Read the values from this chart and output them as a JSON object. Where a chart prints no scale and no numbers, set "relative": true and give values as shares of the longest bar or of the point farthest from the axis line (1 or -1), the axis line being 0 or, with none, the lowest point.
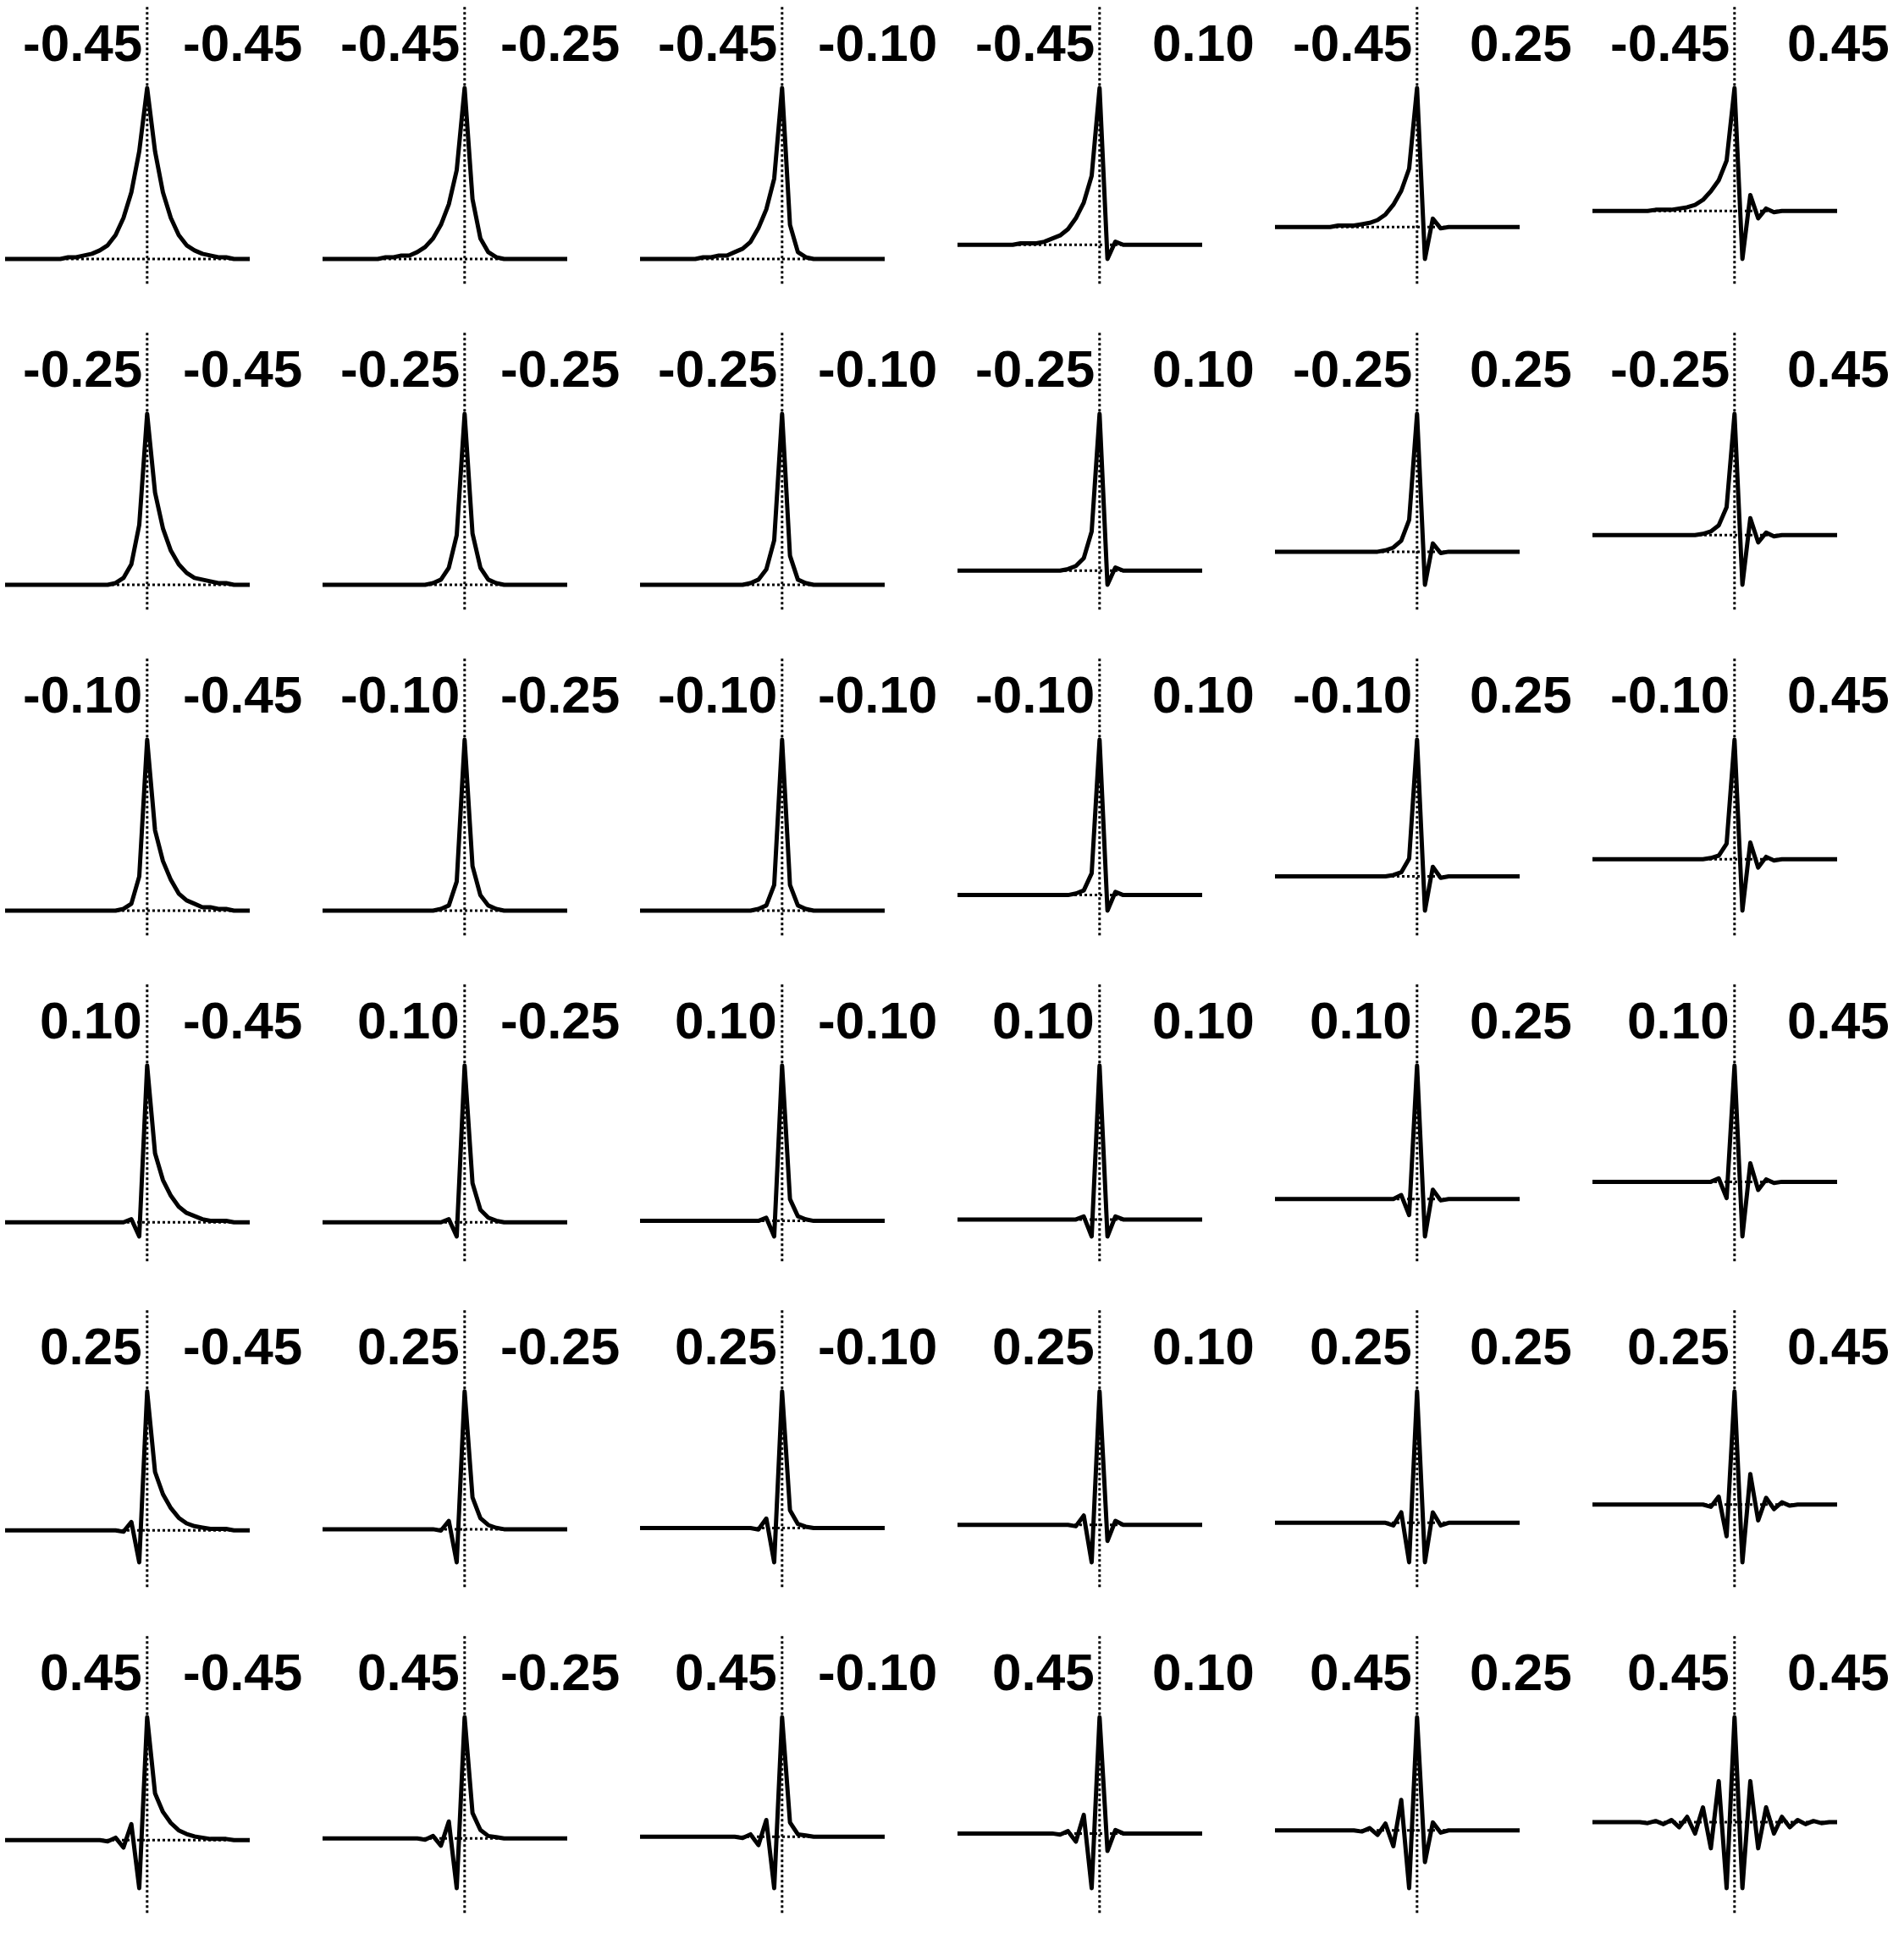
{
  "chart_data": [
    {
      "type": "line",
      "relative": true,
      "color": "#000000",
      "annotations": [
        "-0.45",
        "-0.45"
      ],
      "categories": [
        null,
        null,
        null,
        null,
        null,
        null,
        null,
        null,
        null,
        null,
        null,
        null,
        null,
        null,
        null,
        null,
        null,
        null,
        null,
        null,
        null,
        null,
        null,
        null,
        null,
        null,
        null,
        null,
        null,
        null,
        null,
        null
      ],
      "values": [
        0,
        0,
        0,
        0,
        0,
        0,
        0,
        0,
        0.01,
        0.01,
        0.02,
        0.03,
        0.05,
        0.08,
        0.14,
        0.24,
        0.39,
        0.63,
        1,
        0.63,
        0.39,
        0.24,
        0.14,
        0.08,
        0.05,
        0.03,
        0.02,
        0.01,
        0.01,
        0,
        0,
        0
      ]
    },
    {
      "type": "line",
      "relative": true,
      "color": "#000000",
      "annotations": [
        "-0.45",
        "-0.25"
      ],
      "categories": [
        null,
        null,
        null,
        null,
        null,
        null,
        null,
        null,
        null,
        null,
        null,
        null,
        null,
        null,
        null,
        null,
        null,
        null,
        null,
        null,
        null,
        null,
        null,
        null,
        null,
        null,
        null,
        null,
        null,
        null,
        null,
        null
      ],
      "values": [
        0,
        0,
        0,
        0,
        0,
        0,
        0,
        0,
        0.01,
        0.01,
        0.02,
        0.02,
        0.04,
        0.07,
        0.12,
        0.2,
        0.32,
        0.52,
        1,
        0.35,
        0.12,
        0.04,
        0.01,
        0,
        0,
        0,
        0,
        0,
        0,
        0,
        0,
        0
      ]
    },
    {
      "type": "line",
      "relative": true,
      "color": "#000000",
      "annotations": [
        "-0.45",
        "-0.10"
      ],
      "categories": [
        null,
        null,
        null,
        null,
        null,
        null,
        null,
        null,
        null,
        null,
        null,
        null,
        null,
        null,
        null,
        null,
        null,
        null,
        null,
        null,
        null,
        null,
        null,
        null,
        null,
        null,
        null,
        null,
        null,
        null,
        null,
        null
      ],
      "values": [
        0,
        0,
        0,
        0,
        0,
        0,
        0,
        0,
        0.01,
        0.01,
        0.02,
        0.02,
        0.04,
        0.06,
        0.1,
        0.18,
        0.29,
        0.47,
        1,
        0.2,
        0.04,
        0.01,
        0,
        0,
        0,
        0,
        0,
        0,
        0,
        0,
        0,
        0
      ]
    },
    {
      "type": "line",
      "relative": true,
      "color": "#000000",
      "annotations": [
        "-0.45",
        "0.10"
      ],
      "categories": [
        null,
        null,
        null,
        null,
        null,
        null,
        null,
        null,
        null,
        null,
        null,
        null,
        null,
        null,
        null,
        null,
        null,
        null,
        null,
        null,
        null,
        null,
        null,
        null,
        null,
        null,
        null,
        null,
        null,
        null,
        null,
        null
      ],
      "values": [
        0,
        0,
        0,
        0,
        0,
        0,
        0,
        0,
        0.01,
        0.01,
        0.01,
        0.02,
        0.04,
        0.06,
        0.1,
        0.17,
        0.27,
        0.44,
        1,
        -0.09,
        0.02,
        0,
        0,
        0,
        0,
        0,
        0,
        0,
        0,
        0,
        0,
        0
      ]
    },
    {
      "type": "line",
      "relative": true,
      "color": "#000000",
      "annotations": [
        "-0.45",
        "0.25"
      ],
      "categories": [
        null,
        null,
        null,
        null,
        null,
        null,
        null,
        null,
        null,
        null,
        null,
        null,
        null,
        null,
        null,
        null,
        null,
        null,
        null,
        null,
        null,
        null,
        null,
        null,
        null,
        null,
        null,
        null,
        null,
        null,
        null,
        null
      ],
      "values": [
        0,
        0,
        0,
        0,
        0,
        0,
        0,
        0,
        0.01,
        0.01,
        0.01,
        0.02,
        0.03,
        0.05,
        0.09,
        0.16,
        0.26,
        0.42,
        1,
        -0.23,
        0.06,
        -0.01,
        0,
        0,
        0,
        0,
        0,
        0,
        0,
        0,
        0,
        0
      ]
    },
    {
      "type": "line",
      "relative": true,
      "color": "#000000",
      "annotations": [
        "-0.45",
        "0.45"
      ],
      "categories": [
        null,
        null,
        null,
        null,
        null,
        null,
        null,
        null,
        null,
        null,
        null,
        null,
        null,
        null,
        null,
        null,
        null,
        null,
        null,
        null,
        null,
        null,
        null,
        null,
        null,
        null,
        null,
        null,
        null,
        null,
        null,
        null
      ],
      "values": [
        0,
        0,
        0,
        0,
        0,
        0,
        0,
        0,
        0.01,
        0.01,
        0.01,
        0.02,
        0.03,
        0.05,
        0.09,
        0.16,
        0.25,
        0.41,
        1,
        -0.39,
        0.13,
        -0.06,
        0.02,
        -0.01,
        0,
        0,
        0,
        0,
        0,
        0,
        0,
        0
      ]
    },
    {
      "type": "line",
      "relative": true,
      "color": "#000000",
      "annotations": [
        "-0.25",
        "-0.45"
      ],
      "categories": [
        null,
        null,
        null,
        null,
        null,
        null,
        null,
        null,
        null,
        null,
        null,
        null,
        null,
        null,
        null,
        null,
        null,
        null,
        null,
        null,
        null,
        null,
        null,
        null,
        null,
        null,
        null,
        null,
        null,
        null,
        null,
        null
      ],
      "values": [
        0,
        0,
        0,
        0,
        0,
        0,
        0,
        0,
        0,
        0,
        0,
        0,
        0,
        0,
        0.01,
        0.04,
        0.12,
        0.35,
        1,
        0.54,
        0.33,
        0.2,
        0.12,
        0.07,
        0.04,
        0.03,
        0.02,
        0.01,
        0.01,
        0,
        0,
        0
      ]
    },
    {
      "type": "line",
      "relative": true,
      "color": "#000000",
      "annotations": [
        "-0.25",
        "-0.25"
      ],
      "categories": [
        null,
        null,
        null,
        null,
        null,
        null,
        null,
        null,
        null,
        null,
        null,
        null,
        null,
        null,
        null,
        null,
        null,
        null,
        null,
        null,
        null,
        null,
        null,
        null,
        null,
        null,
        null,
        null,
        null,
        null,
        null,
        null
      ],
      "values": [
        0,
        0,
        0,
        0,
        0,
        0,
        0,
        0,
        0,
        0,
        0,
        0,
        0,
        0,
        0.01,
        0.03,
        0.1,
        0.29,
        1,
        0.3,
        0.1,
        0.03,
        0.01,
        0,
        0,
        0,
        0,
        0,
        0,
        0,
        0,
        0
      ]
    },
    {
      "type": "line",
      "relative": true,
      "color": "#000000",
      "annotations": [
        "-0.25",
        "-0.10"
      ],
      "categories": [
        null,
        null,
        null,
        null,
        null,
        null,
        null,
        null,
        null,
        null,
        null,
        null,
        null,
        null,
        null,
        null,
        null,
        null,
        null,
        null,
        null,
        null,
        null,
        null,
        null,
        null,
        null,
        null,
        null,
        null,
        null,
        null
      ],
      "values": [
        0,
        0,
        0,
        0,
        0,
        0,
        0,
        0,
        0,
        0,
        0,
        0,
        0,
        0,
        0.01,
        0.03,
        0.09,
        0.26,
        1,
        0.17,
        0.03,
        0.01,
        0,
        0,
        0,
        0,
        0,
        0,
        0,
        0,
        0,
        0
      ]
    },
    {
      "type": "line",
      "relative": true,
      "color": "#000000",
      "annotations": [
        "-0.25",
        "0.10"
      ],
      "categories": [
        null,
        null,
        null,
        null,
        null,
        null,
        null,
        null,
        null,
        null,
        null,
        null,
        null,
        null,
        null,
        null,
        null,
        null,
        null,
        null,
        null,
        null,
        null,
        null,
        null,
        null,
        null,
        null,
        null,
        null,
        null,
        null
      ],
      "values": [
        0,
        0,
        0,
        0,
        0,
        0,
        0,
        0,
        0,
        0,
        0,
        0,
        0,
        0,
        0.01,
        0.03,
        0.08,
        0.25,
        1,
        -0.09,
        0.02,
        0,
        0,
        0,
        0,
        0,
        0,
        0,
        0,
        0,
        0,
        0
      ]
    },
    {
      "type": "line",
      "relative": true,
      "color": "#000000",
      "annotations": [
        "-0.25",
        "0.25"
      ],
      "categories": [
        null,
        null,
        null,
        null,
        null,
        null,
        null,
        null,
        null,
        null,
        null,
        null,
        null,
        null,
        null,
        null,
        null,
        null,
        null,
        null,
        null,
        null,
        null,
        null,
        null,
        null,
        null,
        null,
        null,
        null,
        null,
        null
      ],
      "values": [
        0,
        0,
        0,
        0,
        0,
        0,
        0,
        0,
        0,
        0,
        0,
        0,
        0,
        0,
        0.01,
        0.03,
        0.08,
        0.23,
        1,
        -0.24,
        0.06,
        -0.01,
        0,
        0,
        0,
        0,
        0,
        0,
        0,
        0,
        0,
        0
      ]
    },
    {
      "type": "line",
      "relative": true,
      "color": "#000000",
      "annotations": [
        "-0.25",
        "0.45"
      ],
      "categories": [
        null,
        null,
        null,
        null,
        null,
        null,
        null,
        null,
        null,
        null,
        null,
        null,
        null,
        null,
        null,
        null,
        null,
        null,
        null,
        null,
        null,
        null,
        null,
        null,
        null,
        null,
        null,
        null,
        null,
        null,
        null,
        null
      ],
      "values": [
        0,
        0,
        0,
        0,
        0,
        0,
        0,
        0,
        0,
        0,
        0,
        0,
        0,
        0,
        0.01,
        0.03,
        0.08,
        0.23,
        1,
        -0.41,
        0.14,
        -0.06,
        0.02,
        -0.01,
        0,
        0,
        0,
        0,
        0,
        0,
        0,
        0
      ]
    },
    {
      "type": "line",
      "relative": true,
      "color": "#000000",
      "annotations": [
        "-0.10",
        "-0.45"
      ],
      "categories": [
        null,
        null,
        null,
        null,
        null,
        null,
        null,
        null,
        null,
        null,
        null,
        null,
        null,
        null,
        null,
        null,
        null,
        null,
        null,
        null,
        null,
        null,
        null,
        null,
        null,
        null,
        null,
        null,
        null,
        null,
        null,
        null
      ],
      "values": [
        0,
        0,
        0,
        0,
        0,
        0,
        0,
        0,
        0,
        0,
        0,
        0,
        0,
        0,
        0,
        0.01,
        0.04,
        0.2,
        1,
        0.47,
        0.29,
        0.18,
        0.1,
        0.06,
        0.04,
        0.02,
        0.02,
        0.01,
        0.01,
        0,
        0,
        0
      ]
    },
    {
      "type": "line",
      "relative": true,
      "color": "#000000",
      "annotations": [
        "-0.10",
        "-0.25"
      ],
      "categories": [
        null,
        null,
        null,
        null,
        null,
        null,
        null,
        null,
        null,
        null,
        null,
        null,
        null,
        null,
        null,
        null,
        null,
        null,
        null,
        null,
        null,
        null,
        null,
        null,
        null,
        null,
        null,
        null,
        null,
        null,
        null,
        null
      ],
      "values": [
        0,
        0,
        0,
        0,
        0,
        0,
        0,
        0,
        0,
        0,
        0,
        0,
        0,
        0,
        0,
        0.01,
        0.03,
        0.17,
        1,
        0.26,
        0.09,
        0.03,
        0.01,
        0,
        0,
        0,
        0,
        0,
        0,
        0,
        0,
        0
      ]
    },
    {
      "type": "line",
      "relative": true,
      "color": "#000000",
      "annotations": [
        "-0.10",
        "-0.10"
      ],
      "categories": [
        null,
        null,
        null,
        null,
        null,
        null,
        null,
        null,
        null,
        null,
        null,
        null,
        null,
        null,
        null,
        null,
        null,
        null,
        null,
        null,
        null,
        null,
        null,
        null,
        null,
        null,
        null,
        null,
        null,
        null,
        null,
        null
      ],
      "values": [
        0,
        0,
        0,
        0,
        0,
        0,
        0,
        0,
        0,
        0,
        0,
        0,
        0,
        0,
        0,
        0.01,
        0.03,
        0.15,
        1,
        0.15,
        0.03,
        0.01,
        0,
        0,
        0,
        0,
        0,
        0,
        0,
        0,
        0,
        0
      ]
    },
    {
      "type": "line",
      "relative": true,
      "color": "#000000",
      "annotations": [
        "-0.10",
        "0.10"
      ],
      "categories": [
        null,
        null,
        null,
        null,
        null,
        null,
        null,
        null,
        null,
        null,
        null,
        null,
        null,
        null,
        null,
        null,
        null,
        null,
        null,
        null,
        null,
        null,
        null,
        null,
        null,
        null,
        null,
        null,
        null,
        null,
        null,
        null
      ],
      "values": [
        0,
        0,
        0,
        0,
        0,
        0,
        0,
        0,
        0,
        0,
        0,
        0,
        0,
        0,
        0,
        0.01,
        0.03,
        0.14,
        1,
        -0.1,
        0.02,
        0,
        0,
        0,
        0,
        0,
        0,
        0,
        0,
        0,
        0,
        0
      ]
    },
    {
      "type": "line",
      "relative": true,
      "color": "#000000",
      "annotations": [
        "-0.10",
        "0.25"
      ],
      "categories": [
        null,
        null,
        null,
        null,
        null,
        null,
        null,
        null,
        null,
        null,
        null,
        null,
        null,
        null,
        null,
        null,
        null,
        null,
        null,
        null,
        null,
        null,
        null,
        null,
        null,
        null,
        null,
        null,
        null,
        null,
        null,
        null
      ],
      "values": [
        0,
        0,
        0,
        0,
        0,
        0,
        0,
        0,
        0,
        0,
        0,
        0,
        0,
        0,
        0,
        0.01,
        0.03,
        0.13,
        1,
        -0.25,
        0.07,
        -0.01,
        0,
        0,
        0,
        0,
        0,
        0,
        0,
        0,
        0,
        0
      ]
    },
    {
      "type": "line",
      "relative": true,
      "color": "#000000",
      "annotations": [
        "-0.10",
        "0.45"
      ],
      "categories": [
        null,
        null,
        null,
        null,
        null,
        null,
        null,
        null,
        null,
        null,
        null,
        null,
        null,
        null,
        null,
        null,
        null,
        null,
        null,
        null,
        null,
        null,
        null,
        null,
        null,
        null,
        null,
        null,
        null,
        null,
        null,
        null
      ],
      "values": [
        0,
        0,
        0,
        0,
        0,
        0,
        0,
        0,
        0,
        0,
        0,
        0,
        0,
        0,
        0,
        0.01,
        0.03,
        0.13,
        1,
        -0.43,
        0.14,
        -0.07,
        0.02,
        -0.01,
        0,
        0,
        0,
        0,
        0,
        0,
        0,
        0
      ]
    },
    {
      "type": "line",
      "relative": true,
      "color": "#000000",
      "annotations": [
        "0.10",
        "-0.45"
      ],
      "categories": [
        null,
        null,
        null,
        null,
        null,
        null,
        null,
        null,
        null,
        null,
        null,
        null,
        null,
        null,
        null,
        null,
        null,
        null,
        null,
        null,
        null,
        null,
        null,
        null,
        null,
        null,
        null,
        null,
        null,
        null,
        null,
        null
      ],
      "values": [
        0,
        0,
        0,
        0,
        0,
        0,
        0,
        0,
        0,
        0,
        0,
        0,
        0,
        0,
        0,
        0,
        0.02,
        -0.09,
        1,
        0.44,
        0.27,
        0.17,
        0.1,
        0.06,
        0.04,
        0.02,
        0.01,
        0.01,
        0.01,
        0,
        0,
        0
      ]
    },
    {
      "type": "line",
      "relative": true,
      "color": "#000000",
      "annotations": [
        "0.10",
        "-0.25"
      ],
      "categories": [
        null,
        null,
        null,
        null,
        null,
        null,
        null,
        null,
        null,
        null,
        null,
        null,
        null,
        null,
        null,
        null,
        null,
        null,
        null,
        null,
        null,
        null,
        null,
        null,
        null,
        null,
        null,
        null,
        null,
        null,
        null,
        null
      ],
      "values": [
        0,
        0,
        0,
        0,
        0,
        0,
        0,
        0,
        0,
        0,
        0,
        0,
        0,
        0,
        0,
        0,
        0.02,
        -0.09,
        1,
        0.25,
        0.08,
        0.03,
        0.01,
        0,
        0,
        0,
        0,
        0,
        0,
        0,
        0,
        0
      ]
    },
    {
      "type": "line",
      "relative": true,
      "color": "#000000",
      "annotations": [
        "0.10",
        "-0.10"
      ],
      "categories": [
        null,
        null,
        null,
        null,
        null,
        null,
        null,
        null,
        null,
        null,
        null,
        null,
        null,
        null,
        null,
        null,
        null,
        null,
        null,
        null,
        null,
        null,
        null,
        null,
        null,
        null,
        null,
        null,
        null,
        null,
        null,
        null
      ],
      "values": [
        0,
        0,
        0,
        0,
        0,
        0,
        0,
        0,
        0,
        0,
        0,
        0,
        0,
        0,
        0,
        0,
        0.02,
        -0.1,
        1,
        0.14,
        0.03,
        0.01,
        0,
        0,
        0,
        0,
        0,
        0,
        0,
        0,
        0,
        0
      ]
    },
    {
      "type": "line",
      "relative": true,
      "color": "#000000",
      "annotations": [
        "0.10",
        "0.10"
      ],
      "categories": [
        null,
        null,
        null,
        null,
        null,
        null,
        null,
        null,
        null,
        null,
        null,
        null,
        null,
        null,
        null,
        null,
        null,
        null,
        null,
        null,
        null,
        null,
        null,
        null,
        null,
        null,
        null,
        null,
        null,
        null,
        null,
        null
      ],
      "values": [
        0,
        0,
        0,
        0,
        0,
        0,
        0,
        0,
        0,
        0,
        0,
        0,
        0,
        0,
        0,
        0,
        0.02,
        -0.11,
        1,
        -0.11,
        0.02,
        0,
        0,
        0,
        0,
        0,
        0,
        0,
        0,
        0,
        0,
        0
      ]
    },
    {
      "type": "line",
      "relative": true,
      "color": "#000000",
      "annotations": [
        "0.10",
        "0.25"
      ],
      "categories": [
        null,
        null,
        null,
        null,
        null,
        null,
        null,
        null,
        null,
        null,
        null,
        null,
        null,
        null,
        null,
        null,
        null,
        null,
        null,
        null,
        null,
        null,
        null,
        null,
        null,
        null,
        null,
        null,
        null,
        null,
        null,
        null
      ],
      "values": [
        0,
        0,
        0,
        0,
        0,
        0,
        0,
        0,
        0,
        0,
        0,
        0,
        0,
        0,
        0,
        0,
        0.03,
        -0.12,
        1,
        -0.28,
        0.07,
        -0.01,
        0,
        0,
        0,
        0,
        0,
        0,
        0,
        0,
        0,
        0
      ]
    },
    {
      "type": "line",
      "relative": true,
      "color": "#000000",
      "annotations": [
        "0.10",
        "0.45"
      ],
      "categories": [
        null,
        null,
        null,
        null,
        null,
        null,
        null,
        null,
        null,
        null,
        null,
        null,
        null,
        null,
        null,
        null,
        null,
        null,
        null,
        null,
        null,
        null,
        null,
        null,
        null,
        null,
        null,
        null,
        null,
        null,
        null,
        null
      ],
      "values": [
        0,
        0,
        0,
        0,
        0,
        0,
        0,
        0,
        0,
        0,
        0,
        0,
        0,
        0,
        0,
        0,
        0.03,
        -0.14,
        1,
        -0.47,
        0.16,
        -0.07,
        0.02,
        -0.01,
        0,
        0,
        0,
        0,
        0,
        0,
        0,
        0
      ]
    },
    {
      "type": "line",
      "relative": true,
      "color": "#000000",
      "annotations": [
        "0.25",
        "-0.45"
      ],
      "categories": [
        null,
        null,
        null,
        null,
        null,
        null,
        null,
        null,
        null,
        null,
        null,
        null,
        null,
        null,
        null,
        null,
        null,
        null,
        null,
        null,
        null,
        null,
        null,
        null,
        null,
        null,
        null,
        null,
        null,
        null,
        null,
        null
      ],
      "values": [
        0,
        0,
        0,
        0,
        0,
        0,
        0,
        0,
        0,
        0,
        0,
        0,
        0,
        0,
        0,
        -0.01,
        0.06,
        -0.23,
        1,
        0.42,
        0.26,
        0.16,
        0.09,
        0.05,
        0.03,
        0.02,
        0.01,
        0.01,
        0.01,
        0,
        0,
        0
      ]
    },
    {
      "type": "line",
      "relative": true,
      "color": "#000000",
      "annotations": [
        "0.25",
        "-0.25"
      ],
      "categories": [
        null,
        null,
        null,
        null,
        null,
        null,
        null,
        null,
        null,
        null,
        null,
        null,
        null,
        null,
        null,
        null,
        null,
        null,
        null,
        null,
        null,
        null,
        null,
        null,
        null,
        null,
        null,
        null,
        null,
        null,
        null,
        null
      ],
      "values": [
        0,
        0,
        0,
        0,
        0,
        0,
        0,
        0,
        0,
        0,
        0,
        0,
        0,
        0,
        0,
        -0.01,
        0.06,
        -0.24,
        1,
        0.23,
        0.08,
        0.03,
        0.01,
        0,
        0,
        0,
        0,
        0,
        0,
        0,
        0,
        0
      ]
    },
    {
      "type": "line",
      "relative": true,
      "color": "#000000",
      "annotations": [
        "0.25",
        "-0.10"
      ],
      "categories": [
        null,
        null,
        null,
        null,
        null,
        null,
        null,
        null,
        null,
        null,
        null,
        null,
        null,
        null,
        null,
        null,
        null,
        null,
        null,
        null,
        null,
        null,
        null,
        null,
        null,
        null,
        null,
        null,
        null,
        null,
        null,
        null
      ],
      "values": [
        0,
        0,
        0,
        0,
        0,
        0,
        0,
        0,
        0,
        0,
        0,
        0,
        0,
        0,
        0,
        -0.01,
        0.07,
        -0.25,
        1,
        0.13,
        0.03,
        0.01,
        0,
        0,
        0,
        0,
        0,
        0,
        0,
        0,
        0,
        0
      ]
    },
    {
      "type": "line",
      "relative": true,
      "color": "#000000",
      "annotations": [
        "0.25",
        "0.10"
      ],
      "categories": [
        null,
        null,
        null,
        null,
        null,
        null,
        null,
        null,
        null,
        null,
        null,
        null,
        null,
        null,
        null,
        null,
        null,
        null,
        null,
        null,
        null,
        null,
        null,
        null,
        null,
        null,
        null,
        null,
        null,
        null,
        null,
        null
      ],
      "values": [
        0,
        0,
        0,
        0,
        0,
        0,
        0,
        0,
        0,
        0,
        0,
        0,
        0,
        0,
        0,
        -0.01,
        0.07,
        -0.28,
        1,
        -0.12,
        0.03,
        0,
        0,
        0,
        0,
        0,
        0,
        0,
        0,
        0,
        0,
        0
      ]
    },
    {
      "type": "line",
      "relative": true,
      "color": "#000000",
      "annotations": [
        "0.25",
        "0.25"
      ],
      "categories": [
        null,
        null,
        null,
        null,
        null,
        null,
        null,
        null,
        null,
        null,
        null,
        null,
        null,
        null,
        null,
        null,
        null,
        null,
        null,
        null,
        null,
        null,
        null,
        null,
        null,
        null,
        null,
        null,
        null,
        null,
        null,
        null
      ],
      "values": [
        0,
        0,
        0,
        0,
        0,
        0,
        0,
        0,
        0,
        0,
        0,
        0,
        0,
        0,
        0,
        -0.02,
        0.08,
        -0.3,
        1,
        -0.3,
        0.08,
        -0.02,
        0,
        0,
        0,
        0,
        0,
        0,
        0,
        0,
        0,
        0
      ]
    },
    {
      "type": "line",
      "relative": true,
      "color": "#000000",
      "annotations": [
        "0.25",
        "0.45"
      ],
      "categories": [
        null,
        null,
        null,
        null,
        null,
        null,
        null,
        null,
        null,
        null,
        null,
        null,
        null,
        null,
        null,
        null,
        null,
        null,
        null,
        null,
        null,
        null,
        null,
        null,
        null,
        null,
        null,
        null,
        null,
        null,
        null,
        null
      ],
      "values": [
        0,
        0,
        0,
        0,
        0,
        0,
        0,
        0,
        0,
        0,
        0,
        0,
        0,
        0,
        0,
        -0.02,
        0.07,
        -0.28,
        1,
        -0.51,
        0.27,
        -0.14,
        0.06,
        -0.04,
        0.02,
        -0.01,
        0,
        0,
        0,
        0,
        0,
        0
      ]
    },
    {
      "type": "line",
      "relative": true,
      "color": "#000000",
      "annotations": [
        "0.45",
        "-0.45"
      ],
      "categories": [
        null,
        null,
        null,
        null,
        null,
        null,
        null,
        null,
        null,
        null,
        null,
        null,
        null,
        null,
        null,
        null,
        null,
        null,
        null,
        null,
        null,
        null,
        null,
        null,
        null,
        null,
        null,
        null,
        null,
        null,
        null,
        null
      ],
      "values": [
        0,
        0,
        0,
        0,
        0,
        0,
        0,
        0,
        0,
        0,
        0,
        0,
        0,
        -0.01,
        0.02,
        -0.06,
        0.13,
        -0.39,
        1,
        0.38,
        0.23,
        0.14,
        0.08,
        0.05,
        0.03,
        0.02,
        0.01,
        0.01,
        0.01,
        0,
        0,
        0
      ]
    },
    {
      "type": "line",
      "relative": true,
      "color": "#000000",
      "annotations": [
        "0.45",
        "-0.25"
      ],
      "categories": [
        null,
        null,
        null,
        null,
        null,
        null,
        null,
        null,
        null,
        null,
        null,
        null,
        null,
        null,
        null,
        null,
        null,
        null,
        null,
        null,
        null,
        null,
        null,
        null,
        null,
        null,
        null,
        null,
        null,
        null,
        null,
        null
      ],
      "values": [
        0,
        0,
        0,
        0,
        0,
        0,
        0,
        0,
        0,
        0,
        0,
        0,
        0,
        -0.01,
        0.02,
        -0.06,
        0.14,
        -0.41,
        1,
        0.21,
        0.07,
        0.02,
        0.01,
        0,
        0,
        0,
        0,
        0,
        0,
        0,
        0,
        0
      ]
    },
    {
      "type": "line",
      "relative": true,
      "color": "#000000",
      "annotations": [
        "0.45",
        "-0.10"
      ],
      "categories": [
        null,
        null,
        null,
        null,
        null,
        null,
        null,
        null,
        null,
        null,
        null,
        null,
        null,
        null,
        null,
        null,
        null,
        null,
        null,
        null,
        null,
        null,
        null,
        null,
        null,
        null,
        null,
        null,
        null,
        null,
        null,
        null
      ],
      "values": [
        0,
        0,
        0,
        0,
        0,
        0,
        0,
        0,
        0,
        0,
        0,
        0,
        0,
        -0.01,
        0.02,
        -0.07,
        0.14,
        -0.43,
        1,
        0.12,
        0.02,
        0.01,
        0,
        0,
        0,
        0,
        0,
        0,
        0,
        0,
        0,
        0
      ]
    },
    {
      "type": "line",
      "relative": true,
      "color": "#000000",
      "annotations": [
        "0.45",
        "0.10"
      ],
      "categories": [
        null,
        null,
        null,
        null,
        null,
        null,
        null,
        null,
        null,
        null,
        null,
        null,
        null,
        null,
        null,
        null,
        null,
        null,
        null,
        null,
        null,
        null,
        null,
        null,
        null,
        null,
        null,
        null,
        null,
        null,
        null,
        null
      ],
      "values": [
        0,
        0,
        0,
        0,
        0,
        0,
        0,
        0,
        0,
        0,
        0,
        0,
        0,
        -0.01,
        0.02,
        -0.07,
        0.16,
        -0.47,
        1,
        -0.15,
        0.03,
        0,
        0,
        0,
        0,
        0,
        0,
        0,
        0,
        0,
        0,
        0
      ]
    },
    {
      "type": "line",
      "relative": true,
      "color": "#000000",
      "annotations": [
        "0.45",
        "0.25"
      ],
      "categories": [
        null,
        null,
        null,
        null,
        null,
        null,
        null,
        null,
        null,
        null,
        null,
        null,
        null,
        null,
        null,
        null,
        null,
        null,
        null,
        null,
        null,
        null,
        null,
        null,
        null,
        null,
        null,
        null,
        null,
        null,
        null,
        null
      ],
      "values": [
        0,
        0,
        0,
        0,
        0,
        0,
        0,
        0,
        0,
        0,
        0,
        -0.01,
        0.02,
        -0.04,
        0.06,
        -0.14,
        0.27,
        -0.51,
        1,
        -0.28,
        0.07,
        -0.02,
        0,
        0,
        0,
        0,
        0,
        0,
        0,
        0,
        0,
        0
      ]
    },
    {
      "type": "line",
      "relative": true,
      "color": "#000000",
      "annotations": [
        "0.45",
        "0.45"
      ],
      "categories": [
        null,
        null,
        null,
        null,
        null,
        null,
        null,
        null,
        null,
        null,
        null,
        null,
        null,
        null,
        null,
        null,
        null,
        null,
        null,
        null,
        null,
        null,
        null,
        null,
        null,
        null,
        null,
        null,
        null,
        null,
        null,
        null
      ],
      "values": [
        0,
        0,
        0,
        0,
        0,
        0,
        0,
        -0.01,
        0.01,
        -0.02,
        0.02,
        -0.05,
        0.05,
        -0.11,
        0.14,
        -0.25,
        0.39,
        -0.63,
        1,
        -0.63,
        0.39,
        -0.25,
        0.14,
        -0.11,
        0.05,
        -0.05,
        0.02,
        -0.02,
        0.01,
        -0.01,
        0,
        0
      ]
    }
  ]
}
